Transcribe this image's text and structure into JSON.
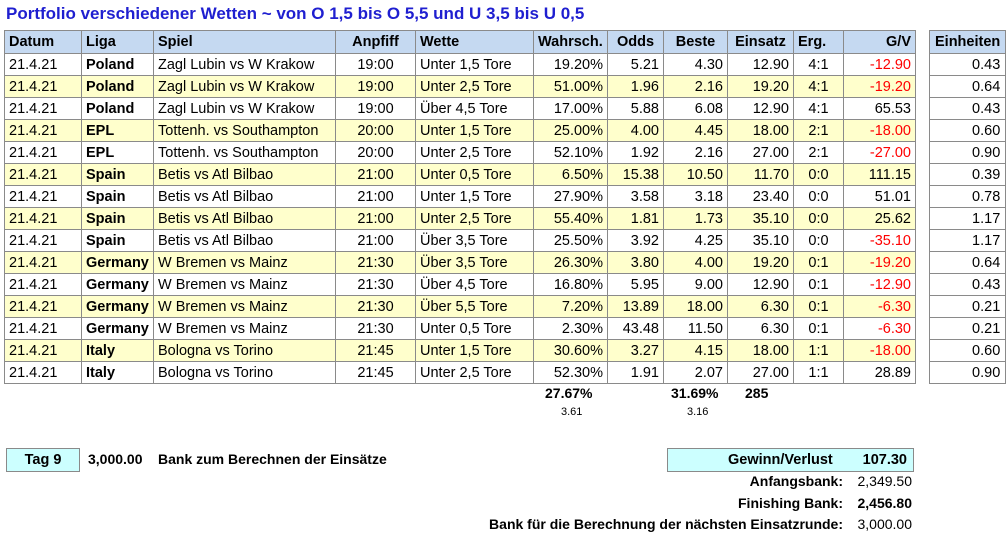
{
  "title": "Portfolio verschiedener Wetten ~ von O 1,5 bis O 5,5 und U 3,5 bis U 0,5",
  "headers": {
    "datum": "Datum",
    "liga": "Liga",
    "spiel": "Spiel",
    "anpfiff": "Anpfiff",
    "wette": "Wette",
    "wahrsch": "Wahrsch.",
    "odds": "Odds",
    "beste": "Beste",
    "einsatz": "Einsatz",
    "erg": "Erg.",
    "gv": "G/V",
    "einheiten": "Einheiten"
  },
  "rows": [
    {
      "datum": "21.4.21",
      "liga": "Poland",
      "spiel": "Zagl Lubin vs W Krakow",
      "anpfiff": "19:00",
      "wette": "Unter 1,5 Tore",
      "wahrsch": "19.20%",
      "odds": "5.21",
      "beste": "4.30",
      "einsatz": "12.90",
      "erg": "4:1",
      "gv": "-12.90",
      "neg": true,
      "einheiten": "0.43"
    },
    {
      "datum": "21.4.21",
      "liga": "Poland",
      "spiel": "Zagl Lubin vs W Krakow",
      "anpfiff": "19:00",
      "wette": "Unter 2,5 Tore",
      "wahrsch": "51.00%",
      "odds": "1.96",
      "beste": "2.16",
      "einsatz": "19.20",
      "erg": "4:1",
      "gv": "-19.20",
      "neg": true,
      "einheiten": "0.64"
    },
    {
      "datum": "21.4.21",
      "liga": "Poland",
      "spiel": "Zagl Lubin vs W Krakow",
      "anpfiff": "19:00",
      "wette": "Über 4,5 Tore",
      "wahrsch": "17.00%",
      "odds": "5.88",
      "beste": "6.08",
      "einsatz": "12.90",
      "erg": "4:1",
      "gv": "65.53",
      "neg": false,
      "einheiten": "0.43"
    },
    {
      "datum": "21.4.21",
      "liga": "EPL",
      "spiel": "Tottenh. vs Southampton",
      "anpfiff": "20:00",
      "wette": "Unter 1,5 Tore",
      "wahrsch": "25.00%",
      "odds": "4.00",
      "beste": "4.45",
      "einsatz": "18.00",
      "erg": "2:1",
      "gv": "-18.00",
      "neg": true,
      "einheiten": "0.60"
    },
    {
      "datum": "21.4.21",
      "liga": "EPL",
      "spiel": "Tottenh. vs Southampton",
      "anpfiff": "20:00",
      "wette": "Unter 2,5 Tore",
      "wahrsch": "52.10%",
      "odds": "1.92",
      "beste": "2.16",
      "einsatz": "27.00",
      "erg": "2:1",
      "gv": "-27.00",
      "neg": true,
      "einheiten": "0.90"
    },
    {
      "datum": "21.4.21",
      "liga": "Spain",
      "spiel": "Betis vs Atl Bilbao",
      "anpfiff": "21:00",
      "wette": "Unter 0,5 Tore",
      "wahrsch": "6.50%",
      "odds": "15.38",
      "beste": "10.50",
      "einsatz": "11.70",
      "erg": "0:0",
      "gv": "111.15",
      "neg": false,
      "einheiten": "0.39"
    },
    {
      "datum": "21.4.21",
      "liga": "Spain",
      "spiel": "Betis vs Atl Bilbao",
      "anpfiff": "21:00",
      "wette": "Unter 1,5 Tore",
      "wahrsch": "27.90%",
      "odds": "3.58",
      "beste": "3.18",
      "einsatz": "23.40",
      "erg": "0:0",
      "gv": "51.01",
      "neg": false,
      "einheiten": "0.78"
    },
    {
      "datum": "21.4.21",
      "liga": "Spain",
      "spiel": "Betis vs Atl Bilbao",
      "anpfiff": "21:00",
      "wette": "Unter 2,5 Tore",
      "wahrsch": "55.40%",
      "odds": "1.81",
      "beste": "1.73",
      "einsatz": "35.10",
      "erg": "0:0",
      "gv": "25.62",
      "neg": false,
      "einheiten": "1.17"
    },
    {
      "datum": "21.4.21",
      "liga": "Spain",
      "spiel": "Betis vs Atl Bilbao",
      "anpfiff": "21:00",
      "wette": "Über 3,5 Tore",
      "wahrsch": "25.50%",
      "odds": "3.92",
      "beste": "4.25",
      "einsatz": "35.10",
      "erg": "0:0",
      "gv": "-35.10",
      "neg": true,
      "einheiten": "1.17"
    },
    {
      "datum": "21.4.21",
      "liga": "Germany",
      "spiel": "W Bremen vs Mainz",
      "anpfiff": "21:30",
      "wette": "Über 3,5 Tore",
      "wahrsch": "26.30%",
      "odds": "3.80",
      "beste": "4.00",
      "einsatz": "19.20",
      "erg": "0:1",
      "gv": "-19.20",
      "neg": true,
      "einheiten": "0.64"
    },
    {
      "datum": "21.4.21",
      "liga": "Germany",
      "spiel": "W Bremen vs Mainz",
      "anpfiff": "21:30",
      "wette": "Über 4,5 Tore",
      "wahrsch": "16.80%",
      "odds": "5.95",
      "beste": "9.00",
      "einsatz": "12.90",
      "erg": "0:1",
      "gv": "-12.90",
      "neg": true,
      "einheiten": "0.43"
    },
    {
      "datum": "21.4.21",
      "liga": "Germany",
      "spiel": "W Bremen vs Mainz",
      "anpfiff": "21:30",
      "wette": "Über 5,5 Tore",
      "wahrsch": "7.20%",
      "odds": "13.89",
      "beste": "18.00",
      "einsatz": "6.30",
      "erg": "0:1",
      "gv": "-6.30",
      "neg": true,
      "einheiten": "0.21"
    },
    {
      "datum": "21.4.21",
      "liga": "Germany",
      "spiel": "W Bremen vs Mainz",
      "anpfiff": "21:30",
      "wette": "Unter 0,5 Tore",
      "wahrsch": "2.30%",
      "odds": "43.48",
      "beste": "11.50",
      "einsatz": "6.30",
      "erg": "0:1",
      "gv": "-6.30",
      "neg": true,
      "einheiten": "0.21"
    },
    {
      "datum": "21.4.21",
      "liga": "Italy",
      "spiel": "Bologna vs Torino",
      "anpfiff": "21:45",
      "wette": "Unter 1,5 Tore",
      "wahrsch": "30.60%",
      "odds": "3.27",
      "beste": "4.15",
      "einsatz": "18.00",
      "erg": "1:1",
      "gv": "-18.00",
      "neg": true,
      "einheiten": "0.60"
    },
    {
      "datum": "21.4.21",
      "liga": "Italy",
      "spiel": "Bologna vs Torino",
      "anpfiff": "21:45",
      "wette": "Unter 2,5 Tore",
      "wahrsch": "52.30%",
      "odds": "1.91",
      "beste": "2.07",
      "einsatz": "27.00",
      "erg": "1:1",
      "gv": "28.89",
      "neg": false,
      "einheiten": "0.90"
    }
  ],
  "totals": {
    "wahrsch": "27.67%",
    "wahrsch_sub": "3.61",
    "beste": "31.69%",
    "beste_sub": "3.16",
    "einsatz": "285"
  },
  "footer": {
    "tag_label": "Tag 9",
    "bank_value": "3,000.00",
    "bank_label": "Bank zum Berechnen der Einsätze",
    "gv_label": "Gewinn/Verlust",
    "gv_value": "107.30",
    "anfangsbank_label": "Anfangsbank:",
    "anfangsbank_value": "2,349.50",
    "finishing_label": "Finishing Bank:",
    "finishing_value": "2,456.80",
    "next_label": "Bank für die Berechnung der nächsten Einsatzrunde:",
    "next_value": "3,000.00"
  },
  "colors": {
    "header_bg": "#c5d9f1",
    "alt_row_bg": "#ffffcc",
    "negative": "#ff0000",
    "title": "#1f1fd0",
    "box_bg": "#ccffff"
  }
}
